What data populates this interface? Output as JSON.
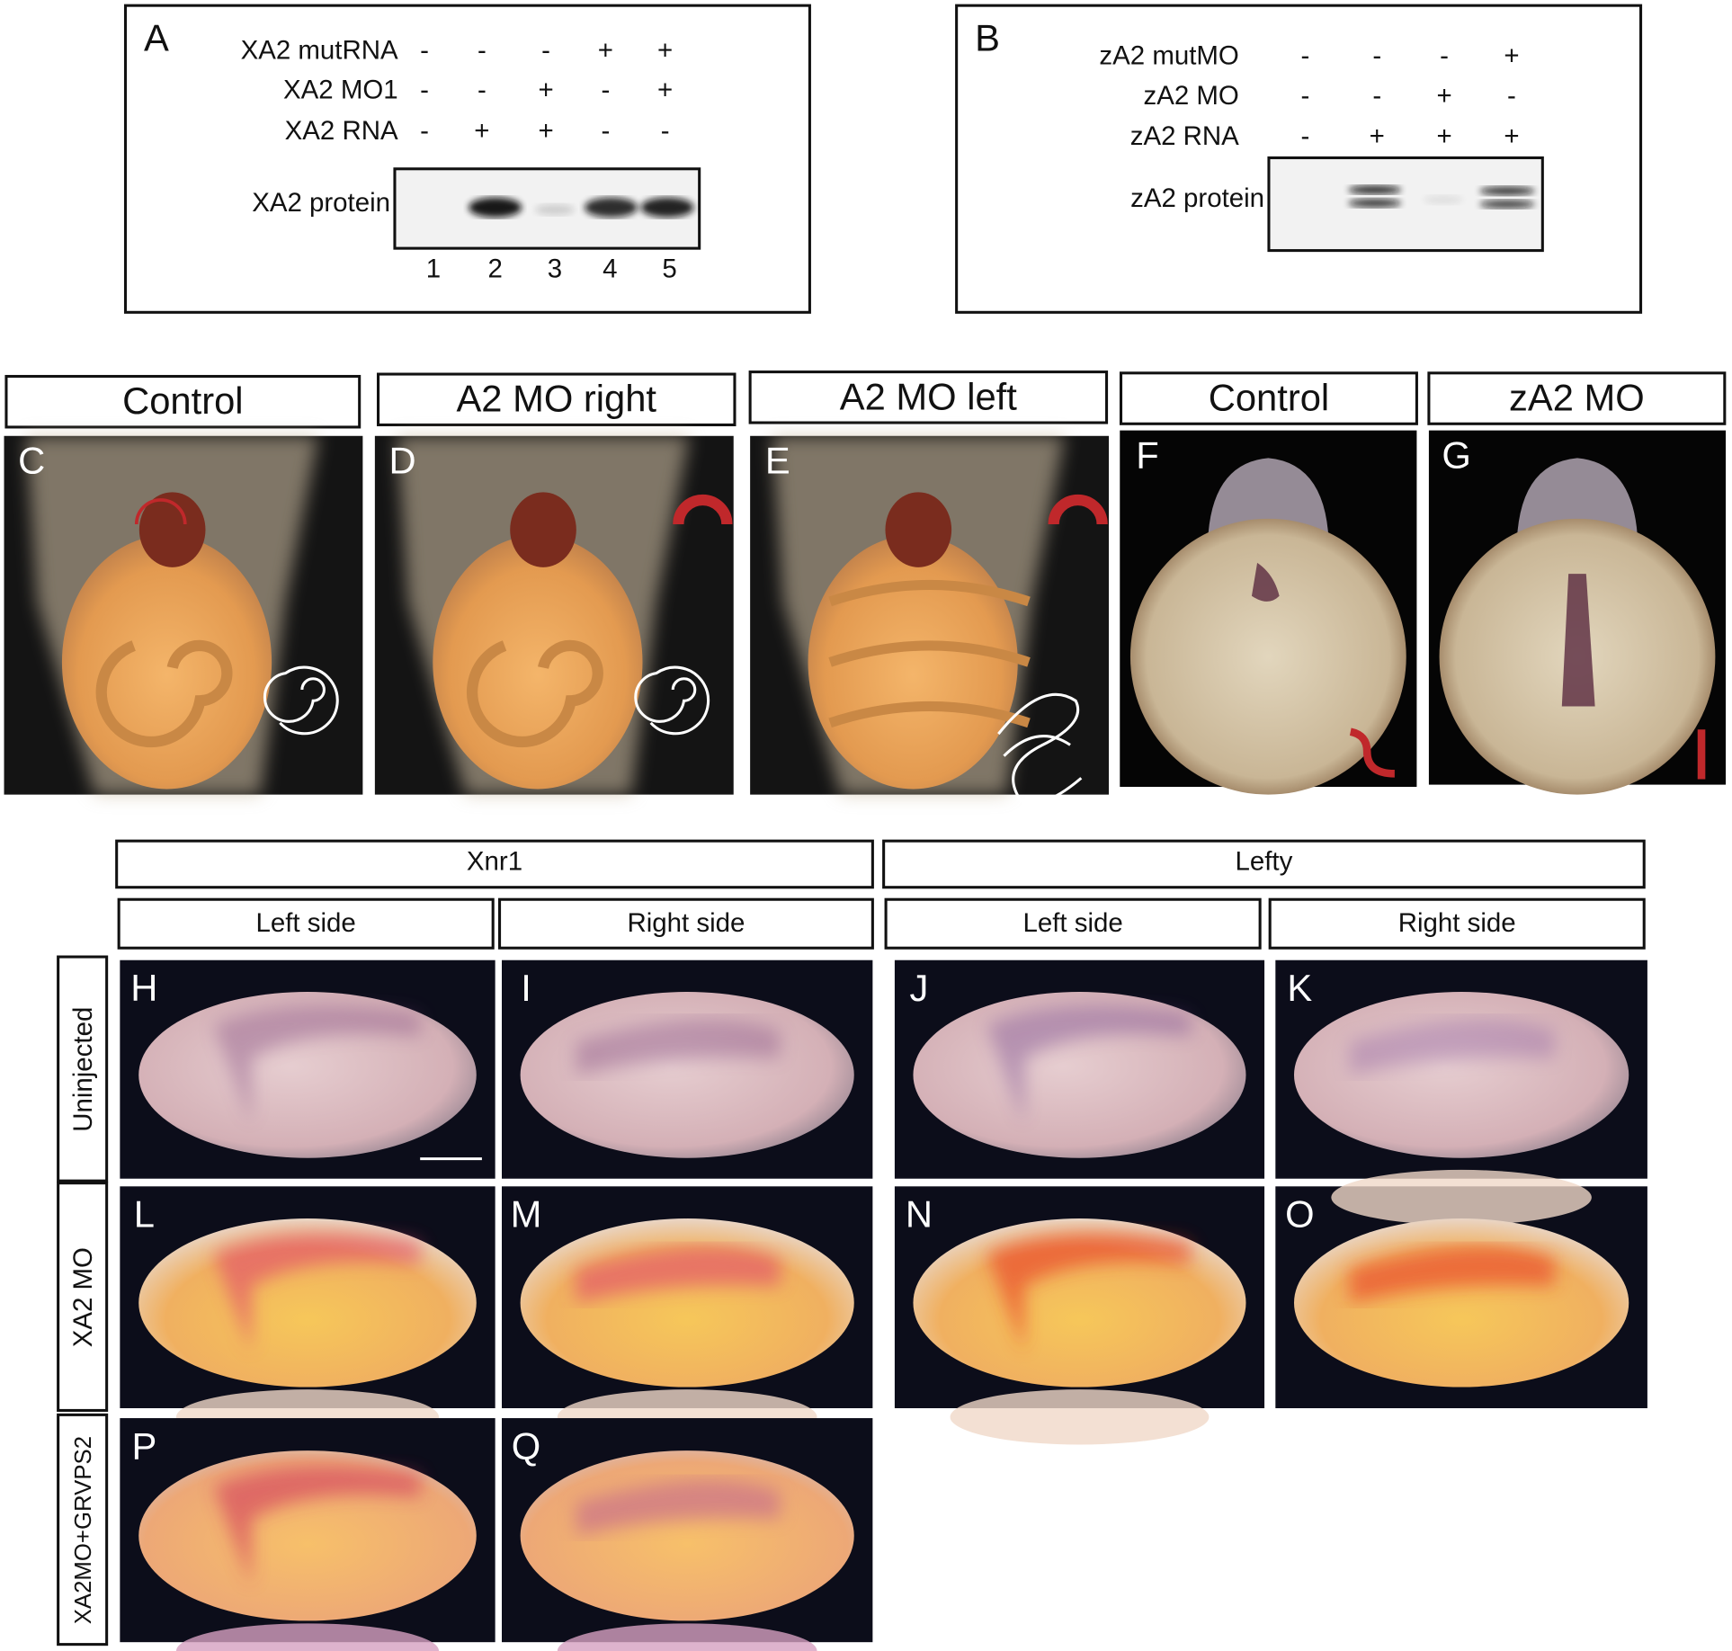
{
  "panel_a": {
    "letter": "A",
    "rows": [
      {
        "label": "XA2 mutRNA",
        "marks": [
          "-",
          "-",
          "-",
          "+",
          "+"
        ]
      },
      {
        "label": "XA2 MO1",
        "marks": [
          "-",
          "-",
          "+",
          "-",
          "+"
        ]
      },
      {
        "label": "XA2 RNA",
        "marks": [
          "-",
          "+",
          "+",
          "-",
          "-"
        ]
      }
    ],
    "blot_label": "XA2 protein",
    "lanes": [
      1,
      2,
      3,
      4,
      5
    ]
  },
  "panel_b": {
    "letter": "B",
    "rows": [
      {
        "label": "zA2 mutMO",
        "marks": [
          "-",
          "-",
          "-",
          "+"
        ]
      },
      {
        "label": "zA2 MO",
        "marks": [
          "-",
          "-",
          "+",
          "-"
        ]
      },
      {
        "label": "zA2 RNA",
        "marks": [
          "-",
          "+",
          "+",
          "+"
        ]
      }
    ],
    "blot_label": "zA2 protein"
  },
  "photo_panels": [
    {
      "header": "Control",
      "letter": "C"
    },
    {
      "header": "A2 MO right",
      "letter": "D"
    },
    {
      "header": "A2 MO left",
      "letter": "E"
    },
    {
      "header": "Control",
      "letter": "F"
    },
    {
      "header": "zA2 MO",
      "letter": "G"
    }
  ],
  "grid": {
    "groups": [
      "Xnr1",
      "Lefty"
    ],
    "sides": [
      "Left side",
      "Right side",
      "Left side",
      "Right side"
    ],
    "rows": [
      {
        "label": "Uninjected",
        "letters": [
          "H",
          "I",
          "J",
          "K"
        ]
      },
      {
        "label": "XA2 MO",
        "letters": [
          "L",
          "M",
          "N",
          "O"
        ]
      },
      {
        "label": "XA2MO+GRVPS2",
        "letters": [
          "P",
          "Q"
        ]
      }
    ]
  }
}
